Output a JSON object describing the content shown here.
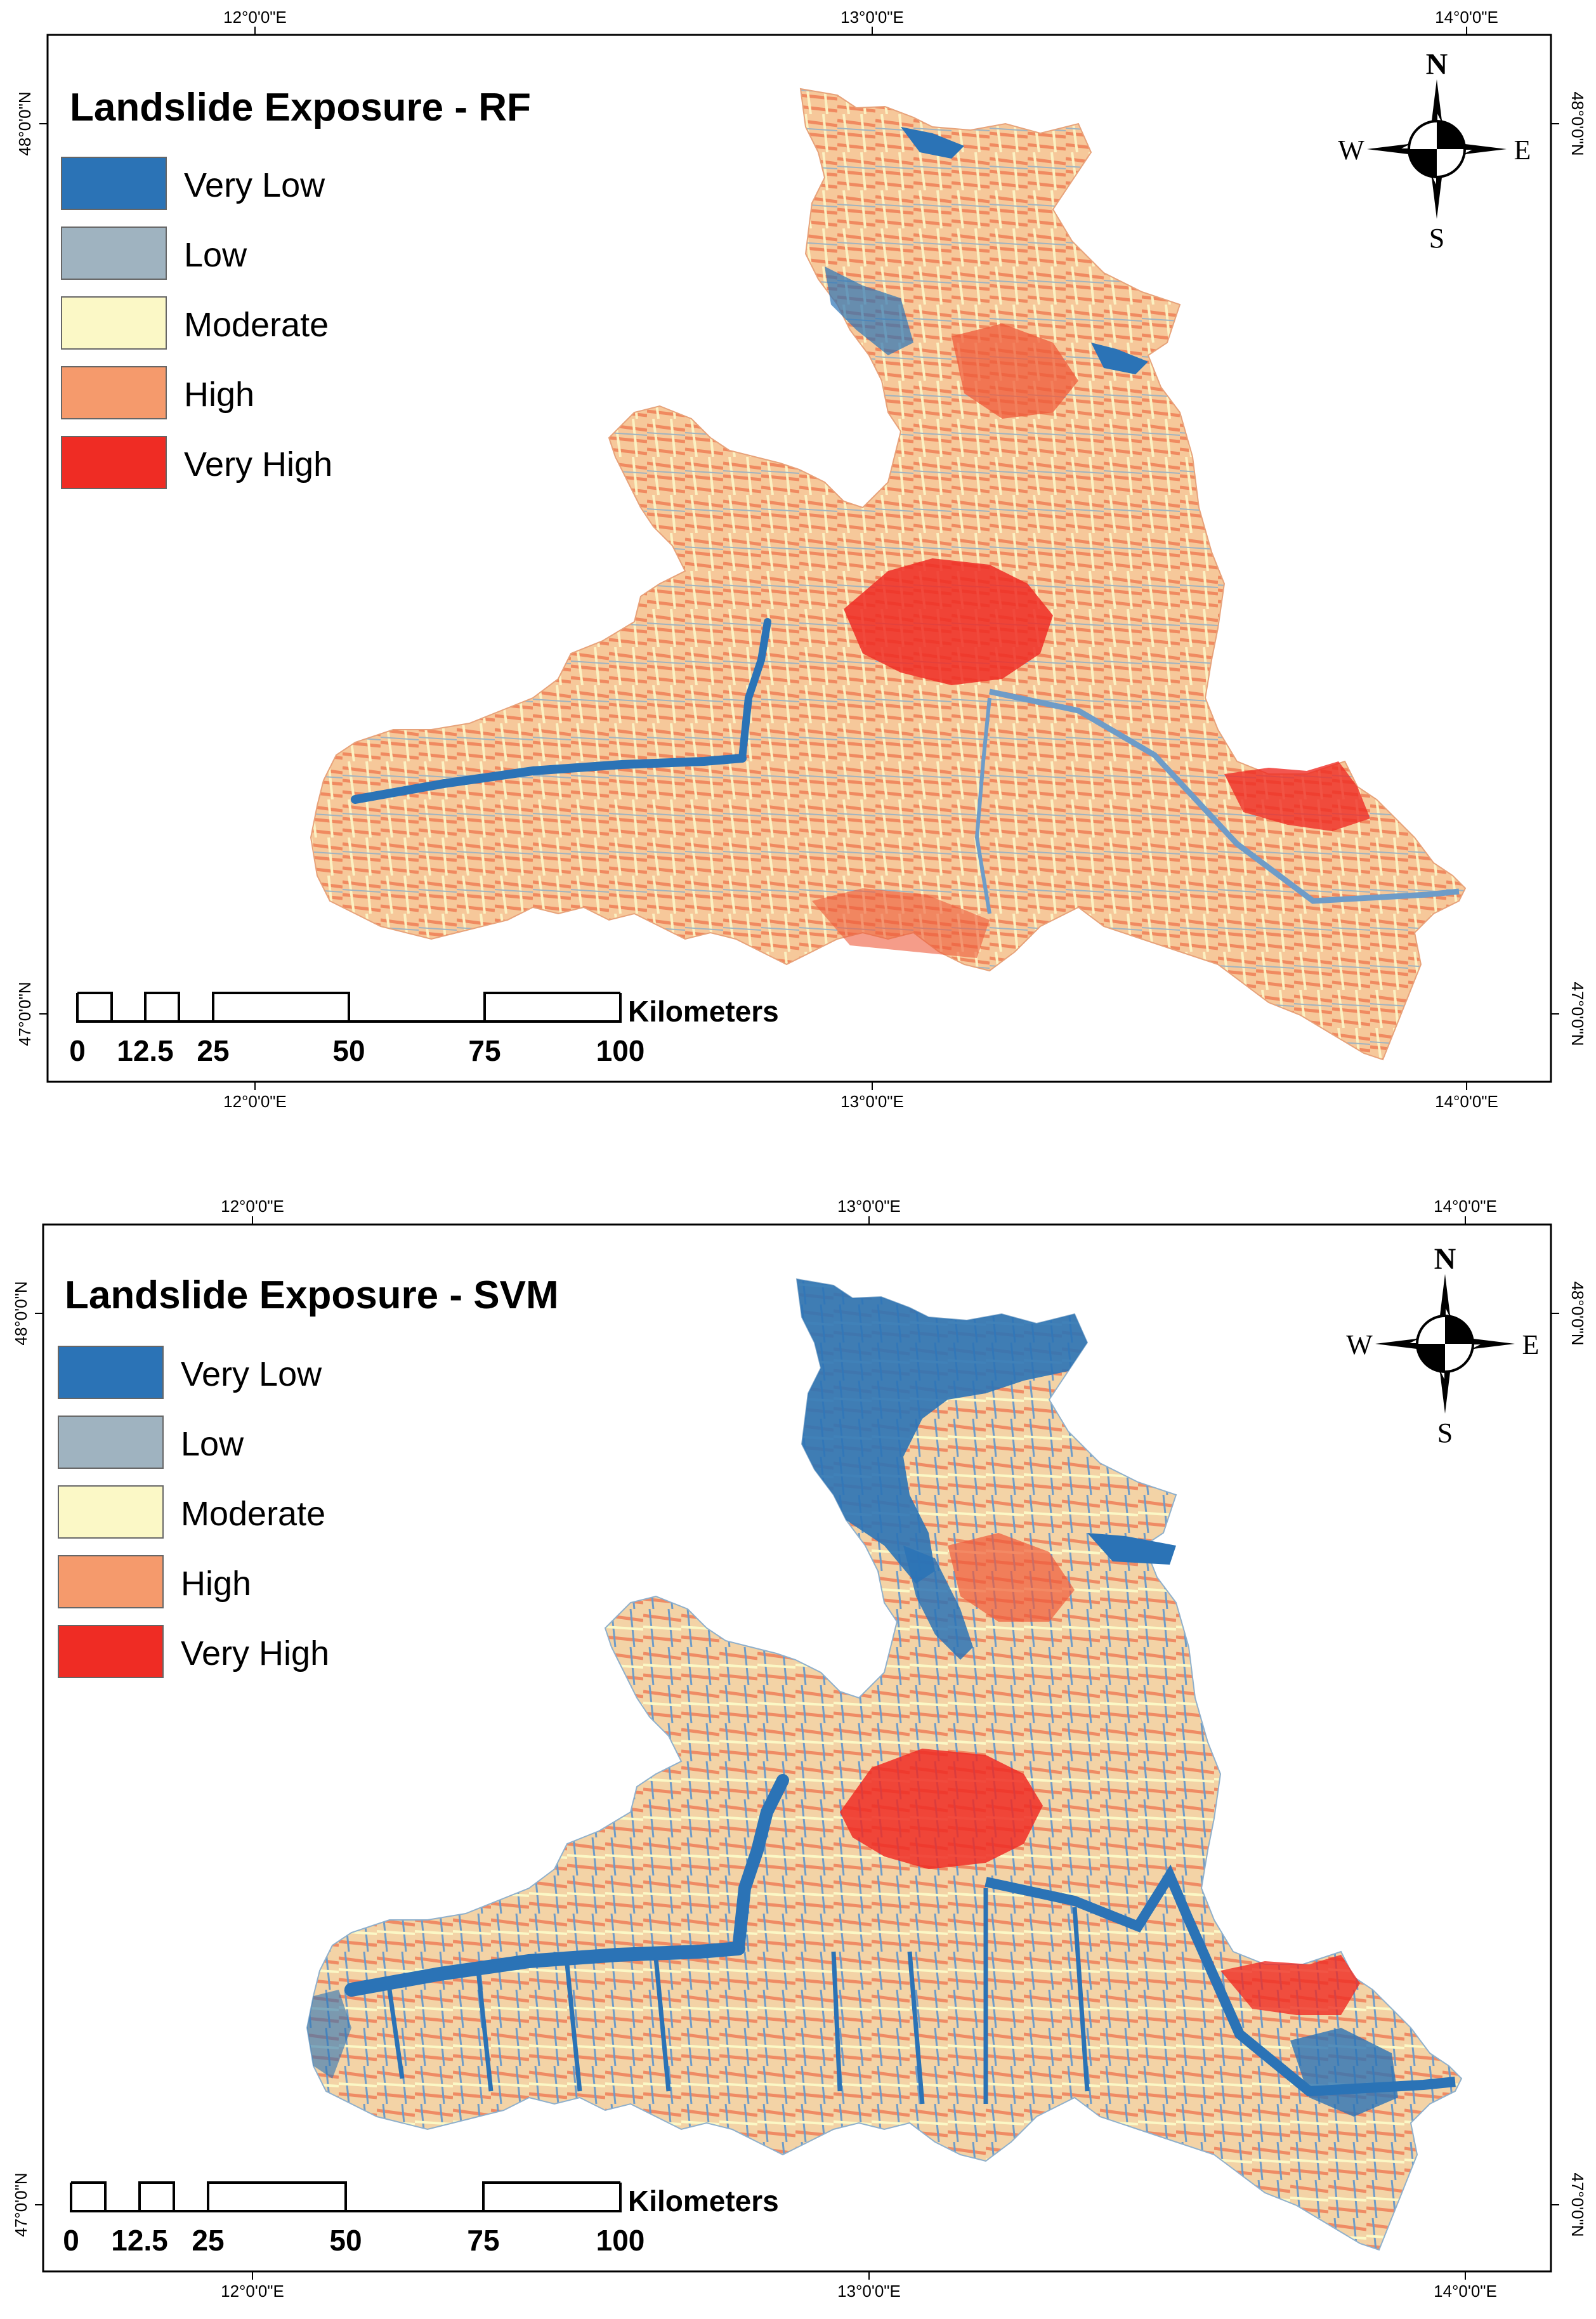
{
  "maps": [
    {
      "title": "Landslide Exposure - RF",
      "top_lon_labels": [
        "12°0'0\"E",
        "13°0'0\"E",
        "14°0'0\"E"
      ],
      "bottom_lon_labels": [
        "12°0'0\"E",
        "13°0'0\"E",
        "14°0'0\"E"
      ],
      "lat_labels": [
        "48°0'0\"N",
        "47°0'0\"N"
      ]
    },
    {
      "title": "Landslide Exposure - SVM",
      "top_lon_labels": [
        "12°0'0\"E",
        "13°0'0\"E",
        "14°0'0\"E"
      ],
      "bottom_lon_labels": [
        "12°0'0\"E",
        "13°0'0\"E",
        "14°0'0\"E"
      ],
      "lat_labels": [
        "48°0'0\"N",
        "47°0'0\"N"
      ]
    }
  ],
  "legend": [
    {
      "label": "Very Low",
      "color": "#2b73b6"
    },
    {
      "label": "Low",
      "color": "#9fb3c0"
    },
    {
      "label": "Moderate",
      "color": "#fbf8c6"
    },
    {
      "label": "High",
      "color": "#f59a6c"
    },
    {
      "label": "Very High",
      "color": "#ef2c24"
    }
  ],
  "scale_bar": {
    "unit": "Kilometers",
    "ticks": [
      "0",
      "12.5",
      "25",
      "50",
      "75",
      "100"
    ]
  },
  "compass": {
    "n": "N",
    "s": "S",
    "e": "E",
    "w": "W"
  },
  "colors": {
    "very_low": "#2b73b6",
    "low": "#9fb3c0",
    "moderate": "#fbf8c6",
    "high": "#f59a6c",
    "very_high": "#ef2c24",
    "frame": "#000000"
  }
}
